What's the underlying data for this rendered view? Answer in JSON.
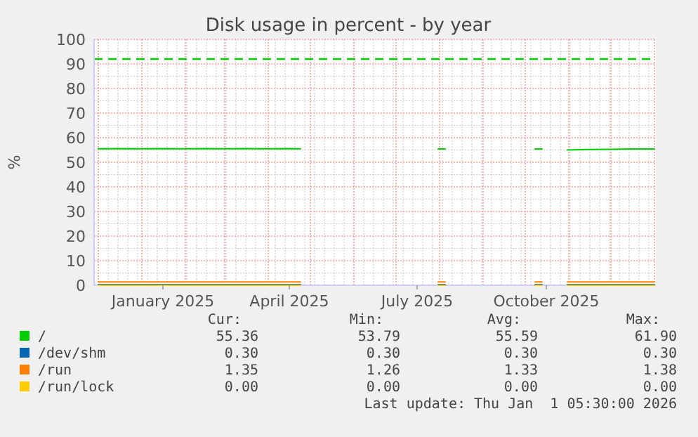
{
  "chart_data": {
    "type": "line",
    "title": "Disk usage in percent - by year",
    "ylabel": "%",
    "x": [
      "2024-12-01",
      "2024-12-15",
      "2025-01-01",
      "2025-01-15",
      "2025-02-01",
      "2025-02-15",
      "2025-03-01",
      "2025-03-15",
      "2025-04-01",
      "2025-04-15",
      "2025-04-24",
      "2025-04-25",
      "2025-07-31",
      "2025-08-05",
      "2025-08-06",
      "2025-10-08",
      "2025-10-13",
      "2025-10-14",
      "2025-10-31",
      "2025-11-15",
      "2025-12-01",
      "2025-12-15",
      "2026-01-01"
    ],
    "series": [
      {
        "name": "/",
        "color": "#00cc00",
        "values": [
          55.5,
          55.6,
          55.5,
          55.6,
          55.5,
          55.6,
          55.5,
          55.6,
          55.5,
          55.6,
          55.5,
          null,
          55.4,
          55.4,
          null,
          55.4,
          55.4,
          null,
          55.0,
          55.2,
          55.3,
          55.4,
          55.4
        ]
      },
      {
        "name": "/dev/shm",
        "color": "#0066b3",
        "values": [
          0.3,
          0.3,
          0.3,
          0.3,
          0.3,
          0.3,
          0.3,
          0.3,
          0.3,
          0.3,
          0.3,
          null,
          0.3,
          0.3,
          null,
          0.3,
          0.3,
          null,
          0.3,
          0.3,
          0.3,
          0.3,
          0.3
        ]
      },
      {
        "name": "/run",
        "color": "#ff8000",
        "values": [
          1.35,
          1.35,
          1.35,
          1.35,
          1.35,
          1.35,
          1.35,
          1.35,
          1.35,
          1.35,
          1.35,
          null,
          1.35,
          1.35,
          null,
          1.35,
          1.35,
          null,
          1.35,
          1.35,
          1.35,
          1.35,
          1.35
        ]
      },
      {
        "name": "/run/lock",
        "color": "#ffcc00",
        "values": [
          0,
          0,
          0,
          0,
          0,
          0,
          0,
          0,
          0,
          0,
          0,
          null,
          0,
          0,
          null,
          0,
          0,
          null,
          0,
          0,
          0,
          0,
          0
        ]
      }
    ],
    "ref_lines": [
      {
        "axis": "y",
        "value": 92,
        "color": "#00cc00",
        "line_style": "dashed"
      }
    ],
    "xlim": [
      "2024-11-28",
      "2026-01-02"
    ],
    "xticks": [
      {
        "value": "2025-01-16",
        "label": "January 2025"
      },
      {
        "value": "2025-04-16",
        "label": "April 2025"
      },
      {
        "value": "2025-07-16",
        "label": "July 2025"
      },
      {
        "value": "2025-10-16",
        "label": "October 2025"
      }
    ],
    "ylim": [
      0,
      100
    ],
    "yticks": [
      0,
      10,
      20,
      30,
      40,
      50,
      60,
      70,
      80,
      90,
      100
    ],
    "grid": true,
    "legend": "bottom",
    "line_style": "solid",
    "marker": "none",
    "annotations": [
      "Cur:",
      "Min:",
      "Avg:",
      "Max:",
      "55.36",
      "53.79",
      "55.59",
      "61.90",
      "0.30",
      "0.30",
      "0.30",
      "0.30",
      "1.35",
      "1.26",
      "1.33",
      "1.38",
      "0.00",
      "0.00",
      "0.00",
      "0.00",
      "Last update: Thu Jan  1 05:30:00 2026"
    ]
  }
}
